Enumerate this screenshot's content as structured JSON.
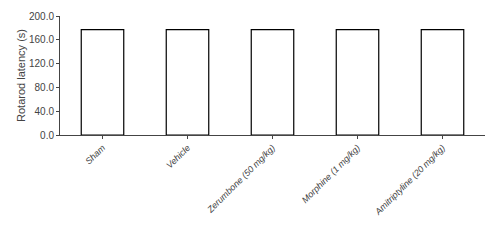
{
  "chart_data": {
    "type": "bar",
    "categories": [
      "Sham",
      "Vehicle",
      "Zerumbone (50 mg/kg)",
      "Morphine (1 mg/kg)",
      "Amitriptyline (20 mg/kg)"
    ],
    "values": [
      177,
      177,
      177,
      177,
      177
    ],
    "color": "white",
    "ylabel": "Rotarod latency (s)",
    "ylim": [
      0,
      200
    ],
    "yticks": [
      {
        "value": 0,
        "label": "0.0"
      },
      {
        "value": 40,
        "label": "40.0"
      },
      {
        "value": 80,
        "label": "80.0"
      },
      {
        "value": 120,
        "label": "120.0"
      },
      {
        "value": 160,
        "label": "160.0"
      },
      {
        "value": 200,
        "label": "200.0"
      }
    ],
    "grid": false
  }
}
